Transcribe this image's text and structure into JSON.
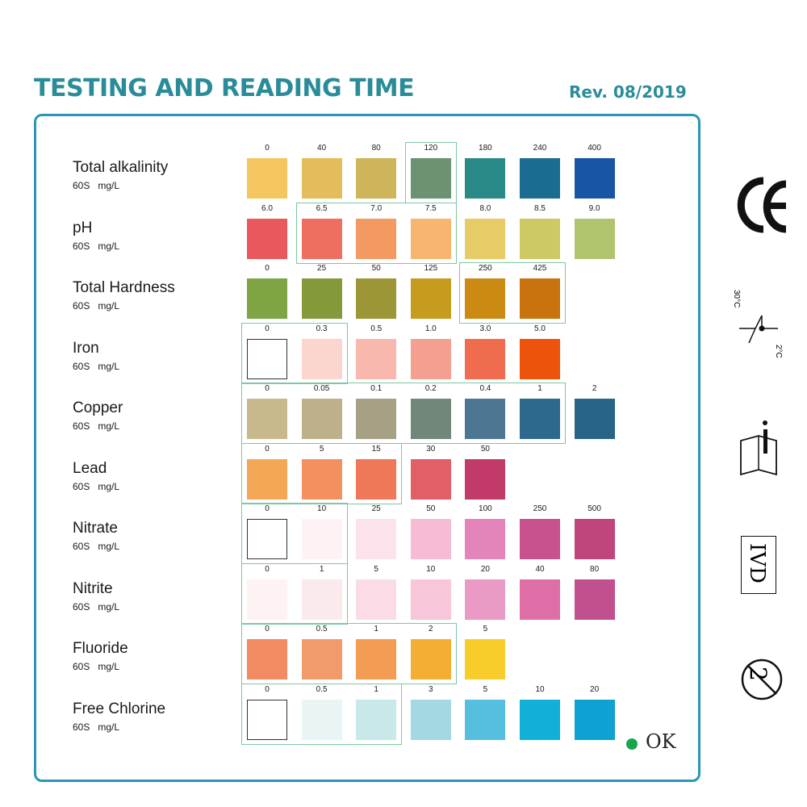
{
  "header": {
    "title": "TESTING AND READING TIME",
    "revision": "Rev. 08/2019"
  },
  "rows": [
    {
      "name": "Total alkalinity",
      "time": "60S",
      "unit": "mg/L",
      "cells": [
        {
          "value": "0",
          "color": "#f5c55f"
        },
        {
          "value": "40",
          "color": "#e3bd5b"
        },
        {
          "value": "80",
          "color": "#cfb55a"
        },
        {
          "value": "120",
          "color": "#6b9273"
        },
        {
          "value": "180",
          "color": "#298a88"
        },
        {
          "value": "240",
          "color": "#1a6d90"
        },
        {
          "value": "400",
          "color": "#1855a3"
        }
      ],
      "groups": [
        [
          3,
          3
        ]
      ]
    },
    {
      "name": "pH",
      "time": "60S",
      "unit": "mg/L",
      "cells": [
        {
          "value": "6.0",
          "color": "#e9585c"
        },
        {
          "value": "6.5",
          "color": "#ee6e60"
        },
        {
          "value": "7.0",
          "color": "#f39a62"
        },
        {
          "value": "7.5",
          "color": "#f7b570"
        },
        {
          "value": "8.0",
          "color": "#e6cb66"
        },
        {
          "value": "8.5",
          "color": "#cdc965"
        },
        {
          "value": "9.0",
          "color": "#b0c36d"
        }
      ],
      "groups": [
        [
          1,
          3
        ]
      ]
    },
    {
      "name": "Total Hardness",
      "time": "60S",
      "unit": "mg/L",
      "cells": [
        {
          "value": "0",
          "color": "#7ea444"
        },
        {
          "value": "25",
          "color": "#84993a"
        },
        {
          "value": "50",
          "color": "#9c9636"
        },
        {
          "value": "125",
          "color": "#c59c1e"
        },
        {
          "value": "250",
          "color": "#cb8a12"
        },
        {
          "value": "425",
          "color": "#c8730e"
        }
      ],
      "groups": [
        [
          4,
          5
        ]
      ]
    },
    {
      "name": "Iron",
      "time": "60S",
      "unit": "mg/L",
      "cells": [
        {
          "value": "0",
          "color": "#ffffff"
        },
        {
          "value": "0.3",
          "color": "#fbd6cf"
        },
        {
          "value": "0.5",
          "color": "#f8b8ad"
        },
        {
          "value": "1.0",
          "color": "#f49f8f"
        },
        {
          "value": "3.0",
          "color": "#ef6c4e"
        },
        {
          "value": "5.0",
          "color": "#ec540b"
        }
      ],
      "groups": [
        [
          0,
          1
        ]
      ]
    },
    {
      "name": "Copper",
      "time": "60S",
      "unit": "mg/L",
      "cells": [
        {
          "value": "0",
          "color": "#c7b98b"
        },
        {
          "value": "0.05",
          "color": "#bdb08a"
        },
        {
          "value": "0.1",
          "color": "#a6a184"
        },
        {
          "value": "0.2",
          "color": "#708779"
        },
        {
          "value": "0.4",
          "color": "#4d7692"
        },
        {
          "value": "1",
          "color": "#2c698d"
        },
        {
          "value": "2",
          "color": "#286486"
        }
      ],
      "groups": [
        [
          0,
          5
        ]
      ]
    },
    {
      "name": "Lead",
      "time": "60S",
      "unit": "mg/L",
      "cells": [
        {
          "value": "0",
          "color": "#f5a758"
        },
        {
          "value": "5",
          "color": "#f2915f"
        },
        {
          "value": "15",
          "color": "#ee7857"
        },
        {
          "value": "30",
          "color": "#e35f68"
        },
        {
          "value": "50",
          "color": "#c23a6a"
        }
      ],
      "groups": [
        [
          0,
          2
        ]
      ]
    },
    {
      "name": "Nitrate",
      "time": "60S",
      "unit": "mg/L",
      "cells": [
        {
          "value": "0",
          "color": "#ffffff"
        },
        {
          "value": "10",
          "color": "#fdf3f5"
        },
        {
          "value": "25",
          "color": "#fbe2eb"
        },
        {
          "value": "50",
          "color": "#f6bcd6"
        },
        {
          "value": "100",
          "color": "#e384bb"
        },
        {
          "value": "250",
          "color": "#c8528e"
        },
        {
          "value": "500",
          "color": "#c0457d"
        }
      ],
      "groups": [
        [
          0,
          1
        ]
      ]
    },
    {
      "name": "Nitrite",
      "time": "60S",
      "unit": "mg/L",
      "cells": [
        {
          "value": "0",
          "color": "#fdf3f3"
        },
        {
          "value": "1",
          "color": "#fbeaec"
        },
        {
          "value": "5",
          "color": "#fadbe6"
        },
        {
          "value": "10",
          "color": "#f7c6da"
        },
        {
          "value": "20",
          "color": "#ea9bc5"
        },
        {
          "value": "40",
          "color": "#df6ea7"
        },
        {
          "value": "80",
          "color": "#c24f8e"
        }
      ],
      "groups": [
        [
          0,
          1
        ]
      ]
    },
    {
      "name": "Fluoride",
      "time": "60S",
      "unit": "mg/L",
      "cells": [
        {
          "value": "0",
          "color": "#f28a62"
        },
        {
          "value": "0.5",
          "color": "#f29b6a"
        },
        {
          "value": "1",
          "color": "#f39c54"
        },
        {
          "value": "2",
          "color": "#f4ae33"
        },
        {
          "value": "5",
          "color": "#f8cc2a"
        }
      ],
      "groups": [
        [
          0,
          3
        ]
      ]
    },
    {
      "name": "Free Chlorine",
      "time": "60S",
      "unit": "mg/L",
      "cells": [
        {
          "value": "0",
          "color": "#ffffff"
        },
        {
          "value": "0.5",
          "color": "#e8f5f4"
        },
        {
          "value": "1",
          "color": "#c9e8ea"
        },
        {
          "value": "3",
          "color": "#a4d9e3"
        },
        {
          "value": "5",
          "color": "#56bfe0"
        },
        {
          "value": "10",
          "color": "#11b0d8"
        },
        {
          "value": "20",
          "color": "#0ea2d3"
        }
      ],
      "groups": [
        [
          0,
          2
        ]
      ]
    }
  ],
  "side_icons": [
    {
      "icon": "ce-mark-icon"
    },
    {
      "icon": "temperature-limit-icon",
      "upper": "30°C",
      "lower": "2°C"
    },
    {
      "icon": "consult-instructions-icon"
    },
    {
      "icon": "ivd-icon",
      "label": "IVD"
    },
    {
      "icon": "do-not-reuse-icon",
      "label": "2"
    }
  ],
  "status": {
    "label": "OK",
    "color": "#19a64a"
  }
}
